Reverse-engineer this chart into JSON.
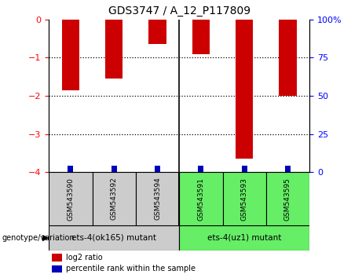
{
  "title": "GDS3747 / A_12_P117809",
  "samples": [
    "GSM543590",
    "GSM543592",
    "GSM543594",
    "GSM543591",
    "GSM543593",
    "GSM543595"
  ],
  "log2_ratios": [
    -1.85,
    -1.55,
    -0.65,
    -0.9,
    -3.65,
    -2.0
  ],
  "percentile_ranks": [
    2.5,
    2.5,
    5.5,
    5.5,
    2.5,
    2.5
  ],
  "group1_indices": [
    0,
    1,
    2
  ],
  "group2_indices": [
    3,
    4,
    5
  ],
  "group1_label": "ets-4(ok165) mutant",
  "group2_label": "ets-4(uz1) mutant",
  "group_label_prefix": "genotype/variation",
  "bar_color_red": "#cc0000",
  "bar_color_blue": "#0000bb",
  "group1_bg": "#cccccc",
  "group2_bg": "#66ee66",
  "ylim_left": [
    -4,
    0
  ],
  "ylim_right": [
    0,
    100
  ],
  "yticks_left": [
    0,
    -1,
    -2,
    -3,
    -4
  ],
  "yticks_right": [
    0,
    25,
    50,
    75,
    100
  ],
  "ytick_right_labels": [
    "0",
    "25",
    "50",
    "75",
    "100%"
  ],
  "legend_log2": "log2 ratio",
  "legend_pct": "percentile rank within the sample",
  "bg_color": "#ffffff",
  "bar_width": 0.4,
  "pct_bar_width": 0.13,
  "pct_bar_height": 0.18
}
